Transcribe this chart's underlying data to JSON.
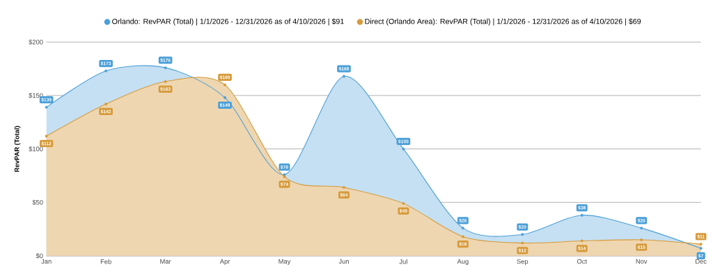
{
  "chart_data": {
    "type": "area",
    "ylabel": "RevPAR (Total)",
    "categories": [
      "Jan",
      "Feb",
      "Mar",
      "Apr",
      "May",
      "Jun",
      "Jul",
      "Aug",
      "Sep",
      "Oct",
      "Nov",
      "Dec"
    ],
    "series": [
      {
        "name": "Orlando: RevPAR (Total) | 1/1/2026 - 12/31/2026 as of 4/10/2026 | $91",
        "color": "#4a9fd8",
        "values": [
          139,
          173,
          176,
          148,
          76,
          168,
          100,
          26,
          20,
          38,
          26,
          7
        ],
        "value_labels": [
          "$139",
          "$173",
          "$176",
          "$148",
          "$76",
          "$168",
          "$100",
          "$26",
          "$20",
          "$38",
          "$26",
          "$7"
        ]
      },
      {
        "name": "Direct (Orlando Area): RevPAR (Total) | 1/1/2026 - 12/31/2026 as of 4/10/2026 | $69",
        "color": "#d69a3a",
        "values": [
          112,
          142,
          163,
          160,
          74,
          64,
          49,
          18,
          12,
          14,
          15,
          11
        ],
        "value_labels": [
          "$112",
          "$142",
          "$163",
          "$160",
          "$74",
          "$64",
          "$49",
          "$18",
          "$12",
          "$14",
          "$15",
          "$11"
        ]
      }
    ],
    "ylim": [
      0,
      200
    ],
    "yticks": [
      {
        "value": 0,
        "label": "$0"
      },
      {
        "value": 50,
        "label": "$50"
      },
      {
        "value": 100,
        "label": "$100"
      },
      {
        "value": 150,
        "label": "$150"
      },
      {
        "value": 200,
        "label": "$200"
      }
    ],
    "grid": "y",
    "legend": "top",
    "marker": "circle",
    "line_style": "solid"
  }
}
